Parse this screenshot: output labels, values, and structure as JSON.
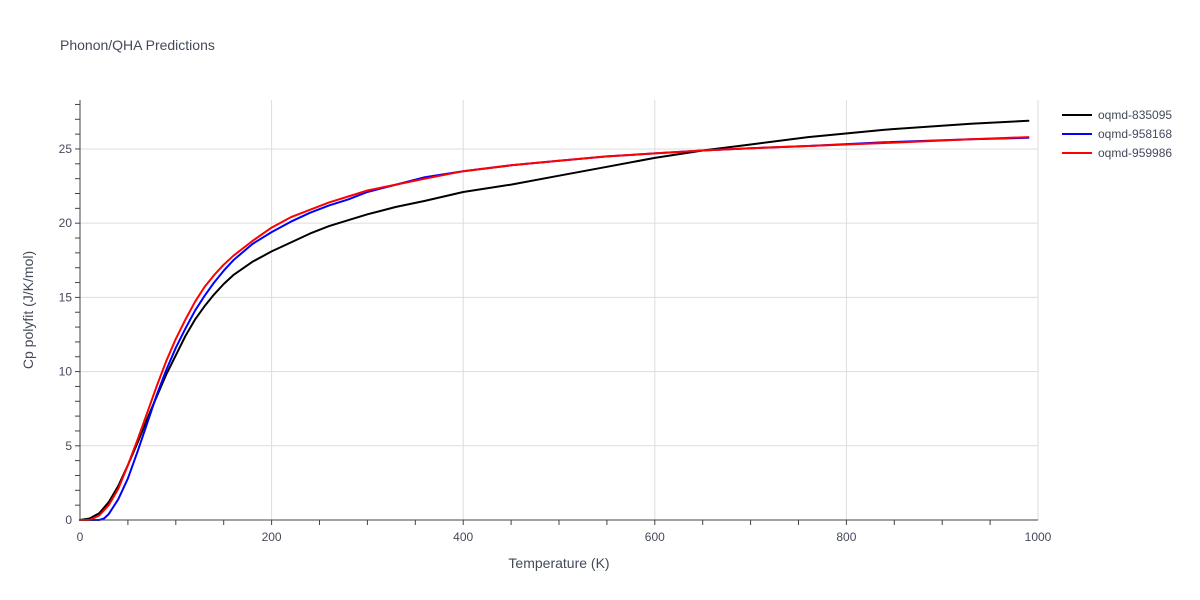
{
  "chart_data": {
    "type": "line",
    "title": "Phonon/QHA Predictions",
    "xlabel": "Temperature (K)",
    "ylabel": "Cp polyfit (J/K/mol)",
    "xlim": [
      0,
      1000
    ],
    "ylim": [
      0,
      28.3
    ],
    "xticks": [
      0,
      200,
      400,
      600,
      800,
      1000
    ],
    "yticks": [
      0,
      5,
      10,
      15,
      20,
      25
    ],
    "grid": true,
    "legend_position": "top-right",
    "series": [
      {
        "name": "oqmd-835095",
        "color": "#000000",
        "x": [
          0,
          10,
          20,
          30,
          40,
          50,
          60,
          70,
          80,
          90,
          100,
          110,
          120,
          130,
          140,
          150,
          160,
          180,
          200,
          220,
          240,
          260,
          280,
          300,
          330,
          360,
          400,
          450,
          500,
          550,
          600,
          650,
          700,
          760,
          840,
          930,
          990
        ],
        "y": [
          0,
          0.1,
          0.45,
          1.2,
          2.3,
          3.7,
          5.2,
          6.8,
          8.3,
          9.8,
          11.1,
          12.4,
          13.5,
          14.4,
          15.2,
          15.9,
          16.5,
          17.4,
          18.1,
          18.7,
          19.3,
          19.8,
          20.2,
          20.6,
          21.1,
          21.5,
          22.1,
          22.6,
          23.2,
          23.8,
          24.4,
          24.9,
          25.3,
          25.8,
          26.3,
          26.7,
          26.9
        ]
      },
      {
        "name": "oqmd-958168",
        "color": "#0000ff",
        "x": [
          0,
          10,
          20,
          25,
          30,
          40,
          50,
          60,
          70,
          80,
          90,
          100,
          110,
          120,
          130,
          140,
          150,
          160,
          180,
          200,
          220,
          240,
          260,
          280,
          300,
          330,
          360,
          400,
          450,
          500,
          550,
          600,
          650,
          700,
          760,
          840,
          930,
          990
        ],
        "y": [
          0,
          0,
          0,
          0.1,
          0.4,
          1.4,
          2.8,
          4.6,
          6.5,
          8.4,
          10.1,
          11.6,
          12.9,
          14.1,
          15.1,
          16.0,
          16.8,
          17.5,
          18.6,
          19.4,
          20.1,
          20.7,
          21.2,
          21.6,
          22.1,
          22.6,
          23.1,
          23.5,
          23.9,
          24.2,
          24.5,
          24.7,
          24.9,
          25.05,
          25.2,
          25.45,
          25.65,
          25.75
        ]
      },
      {
        "name": "oqmd-959986",
        "color": "#ff0000",
        "x": [
          0,
          10,
          20,
          30,
          40,
          50,
          60,
          70,
          80,
          90,
          100,
          110,
          120,
          130,
          140,
          150,
          160,
          180,
          200,
          220,
          240,
          260,
          280,
          300,
          330,
          360,
          400,
          450,
          500,
          550,
          600,
          650,
          700,
          760,
          840,
          930,
          990
        ],
        "y": [
          0,
          0,
          0.3,
          1.0,
          2.1,
          3.7,
          5.4,
          7.2,
          9.0,
          10.7,
          12.2,
          13.5,
          14.7,
          15.7,
          16.5,
          17.2,
          17.8,
          18.8,
          19.7,
          20.4,
          20.9,
          21.4,
          21.8,
          22.2,
          22.6,
          23.0,
          23.5,
          23.9,
          24.2,
          24.5,
          24.7,
          24.9,
          25.05,
          25.2,
          25.4,
          25.65,
          25.8
        ]
      }
    ]
  }
}
